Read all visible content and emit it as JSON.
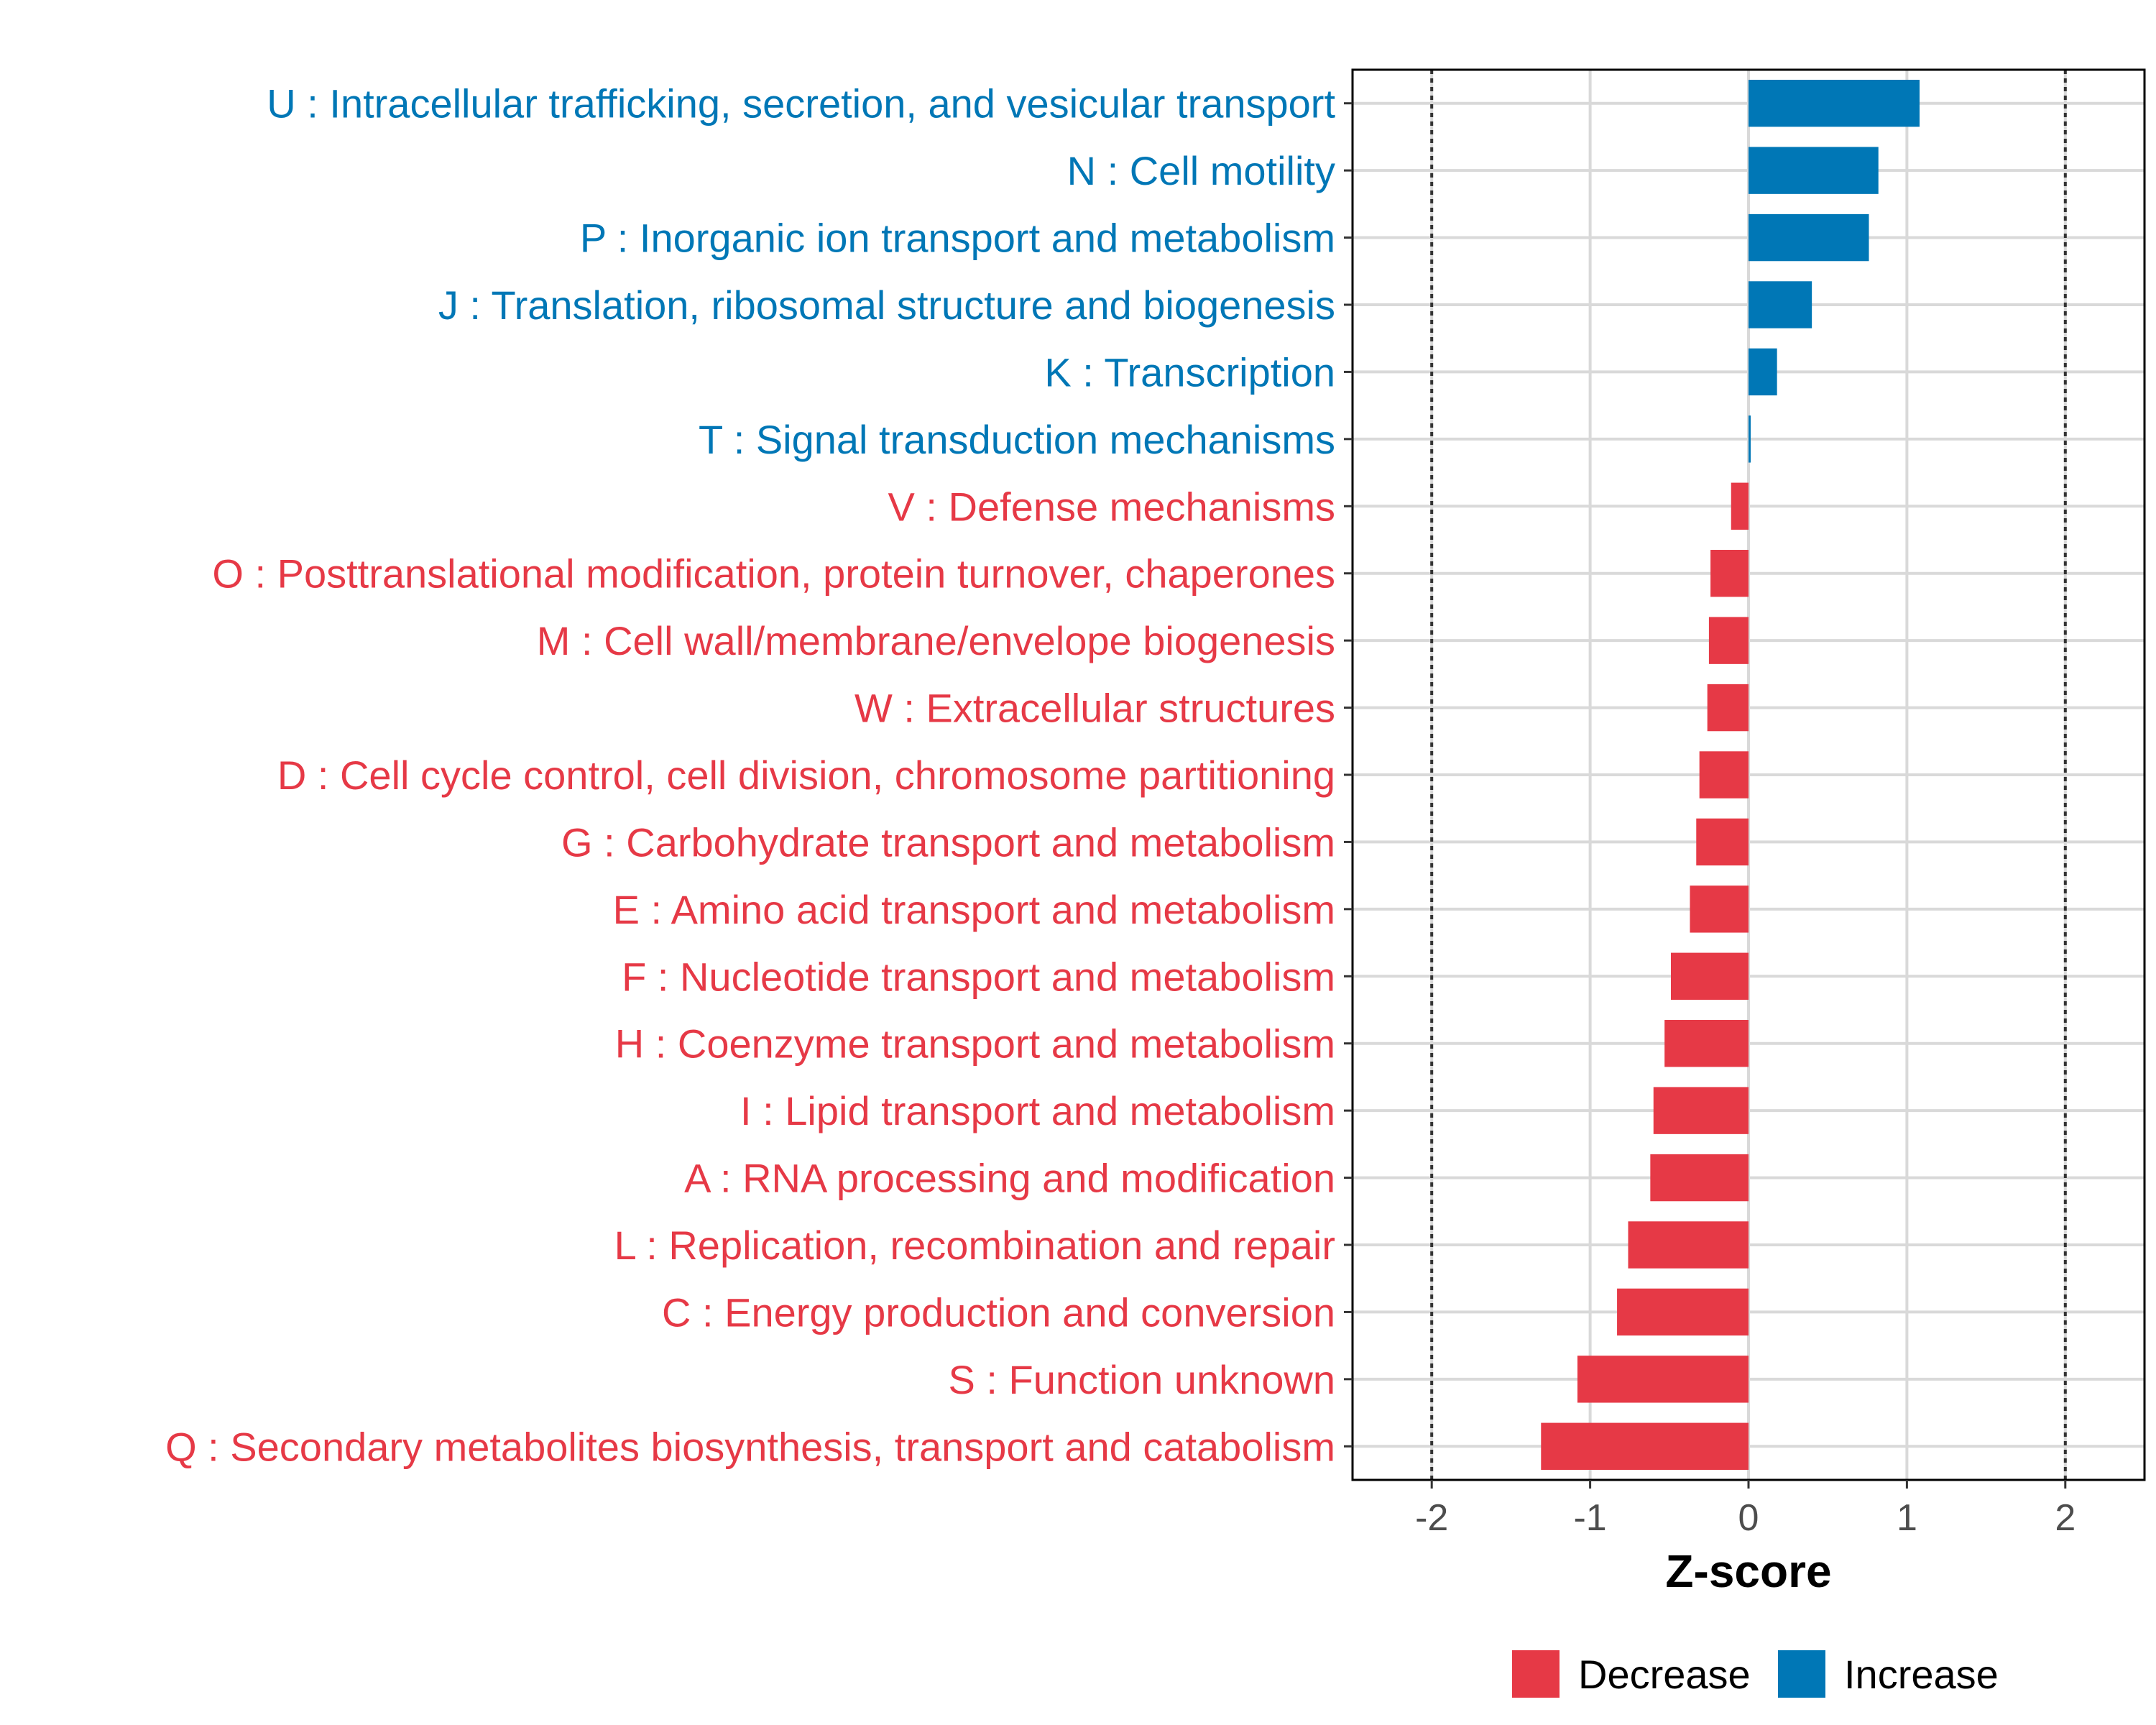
{
  "chart_data": {
    "type": "bar",
    "orientation": "horizontal",
    "xlabel": "Z-score",
    "ylabel": "",
    "xlim": [
      -2.5,
      2.5
    ],
    "xticks": [
      -2,
      -1,
      0,
      1,
      2
    ],
    "xtick_labels": [
      "-2",
      "-1",
      "0",
      "1",
      "2"
    ],
    "reference_lines": [
      -2,
      2
    ],
    "grid": true,
    "legend_position": "bottom",
    "colors": {
      "Decrease": "#e63946",
      "Increase": "#0077b6"
    },
    "legend": [
      {
        "key": "Decrease",
        "label": "Decrease"
      },
      {
        "key": "Increase",
        "label": "Increase"
      }
    ],
    "bars": [
      {
        "label": "U : Intracellular trafficking, secretion, and vesicular transport",
        "value": 1.08,
        "group": "Increase"
      },
      {
        "label": "N : Cell motility",
        "value": 0.82,
        "group": "Increase"
      },
      {
        "label": "P : Inorganic ion transport and metabolism",
        "value": 0.76,
        "group": "Increase"
      },
      {
        "label": "J : Translation, ribosomal structure and biogenesis",
        "value": 0.4,
        "group": "Increase"
      },
      {
        "label": "K : Transcription",
        "value": 0.18,
        "group": "Increase"
      },
      {
        "label": "T : Signal transduction mechanisms",
        "value": 0.01,
        "group": "Increase"
      },
      {
        "label": "V : Defense mechanisms",
        "value": -0.11,
        "group": "Decrease"
      },
      {
        "label": "O : Posttranslational modification, protein turnover, chaperones",
        "value": -0.24,
        "group": "Decrease"
      },
      {
        "label": "M : Cell wall/membrane/envelope biogenesis",
        "value": -0.25,
        "group": "Decrease"
      },
      {
        "label": "W : Extracellular structures",
        "value": -0.26,
        "group": "Decrease"
      },
      {
        "label": "D : Cell cycle control, cell division, chromosome partitioning",
        "value": -0.31,
        "group": "Decrease"
      },
      {
        "label": "G : Carbohydrate transport and metabolism",
        "value": -0.33,
        "group": "Decrease"
      },
      {
        "label": "E : Amino acid transport and metabolism",
        "value": -0.37,
        "group": "Decrease"
      },
      {
        "label": "F : Nucleotide transport and metabolism",
        "value": -0.49,
        "group": "Decrease"
      },
      {
        "label": "H : Coenzyme transport and metabolism",
        "value": -0.53,
        "group": "Decrease"
      },
      {
        "label": "I : Lipid transport and metabolism",
        "value": -0.6,
        "group": "Decrease"
      },
      {
        "label": "A : RNA processing and modification",
        "value": -0.62,
        "group": "Decrease"
      },
      {
        "label": "L : Replication, recombination and repair",
        "value": -0.76,
        "group": "Decrease"
      },
      {
        "label": "C : Energy production and conversion",
        "value": -0.83,
        "group": "Decrease"
      },
      {
        "label": "S : Function unknown",
        "value": -1.08,
        "group": "Decrease"
      },
      {
        "label": "Q : Secondary metabolites biosynthesis, transport and catabolism",
        "value": -1.31,
        "group": "Decrease"
      }
    ]
  }
}
